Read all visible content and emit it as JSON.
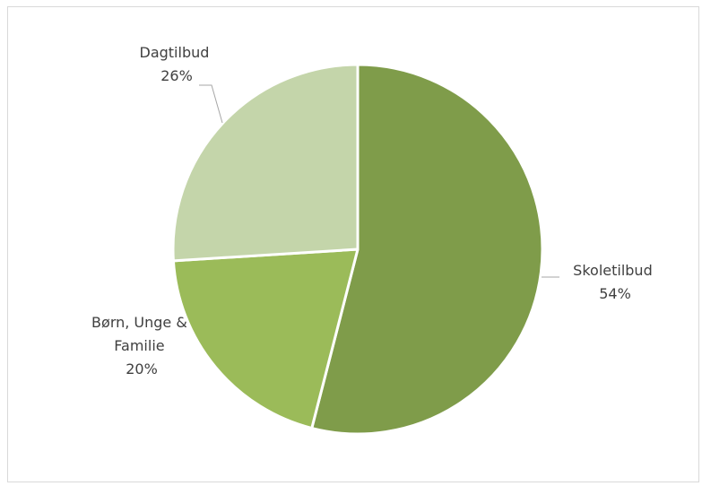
{
  "chart_data": {
    "type": "pie",
    "title": "",
    "slices": [
      {
        "name": "Skoletilbud",
        "value": 54,
        "value_label": "54%",
        "color": "#7f9c4a"
      },
      {
        "name": "Børn, Unge & Familie",
        "name_lines": [
          "Børn, Unge &",
          "Familie"
        ],
        "value": 20,
        "value_label": "20%",
        "color": "#9bbb59"
      },
      {
        "name": "Dagtilbud",
        "value": 26,
        "value_label": "26%",
        "color": "#c4d5aa"
      }
    ],
    "legend": "none",
    "data_labels": "outside with leader lines"
  }
}
